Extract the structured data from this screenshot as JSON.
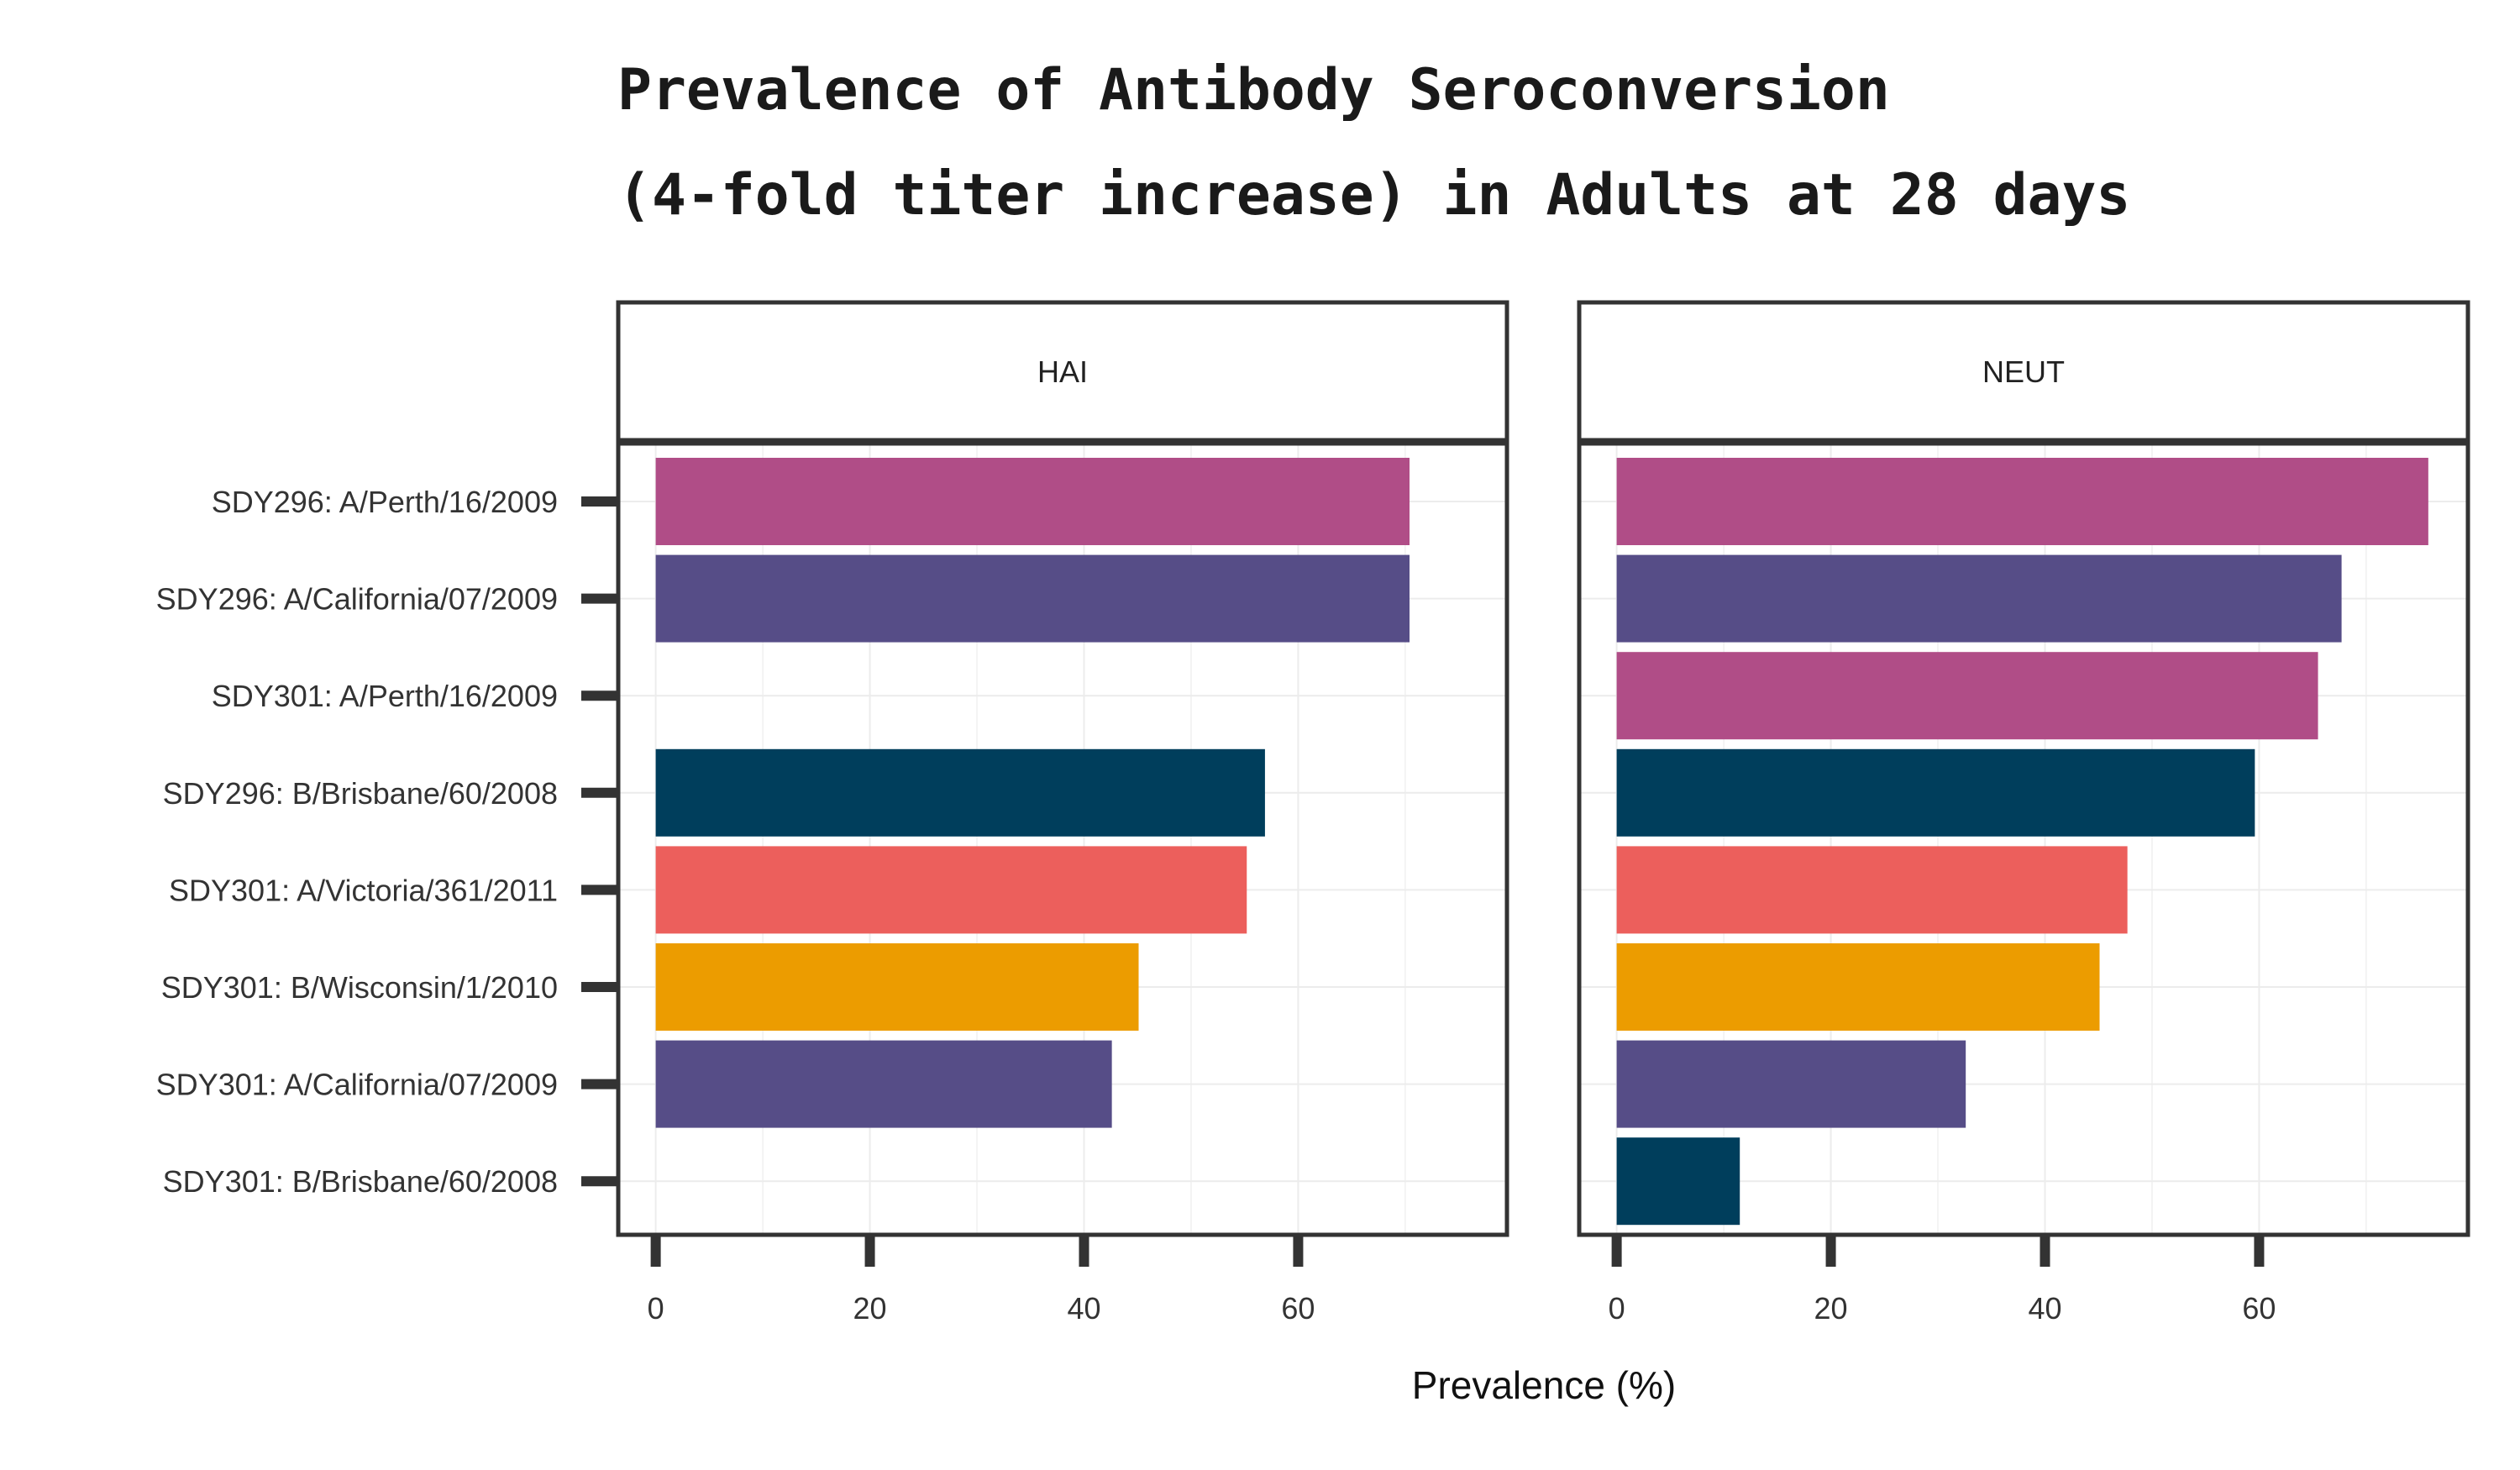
{
  "chart_data": {
    "type": "bar",
    "orientation": "horizontal",
    "title_lines": [
      "Prevalence of Antibody Seroconversion",
      "(4-fold titer increase) in Adults at 28 days"
    ],
    "xlabel": "Prevalence (%)",
    "ylabel": "",
    "xlim": [
      -3.5,
      79.5
    ],
    "x_ticks": [
      "0",
      "20",
      "40",
      "60"
    ],
    "categories": [
      "SDY296: A/Perth/16/2009",
      "SDY296: A/California/07/2009",
      "SDY301: A/Perth/16/2009",
      "SDY296: B/Brisbane/60/2008",
      "SDY301: A/Victoria/361/2011",
      "SDY301: B/Wisconsin/1/2010",
      "SDY301: A/California/07/2009",
      "SDY301: B/Brisbane/60/2008"
    ],
    "bar_colors": [
      "#b04d87",
      "#564d87",
      "#b04d87",
      "#003e5c",
      "#ec5f5c",
      "#ec9c00",
      "#564d87",
      "#003e5c"
    ],
    "panels": [
      {
        "name": "HAI",
        "values": [
          70.4,
          70.4,
          null,
          56.9,
          55.2,
          45.1,
          42.6,
          null
        ]
      },
      {
        "name": "NEUT",
        "values": [
          75.8,
          67.7,
          65.5,
          59.6,
          47.7,
          45.1,
          32.6,
          11.5
        ]
      }
    ],
    "grid": true,
    "legend": "none"
  }
}
